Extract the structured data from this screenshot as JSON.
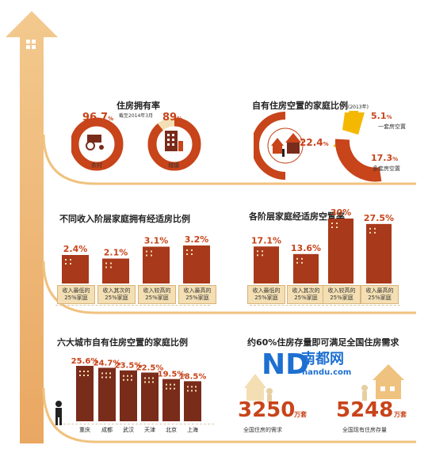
{
  "colors": {
    "accent": "#c8441a",
    "dark_bar": "#7a2c1a",
    "label_bg": "#f3dfb3",
    "arrow": "#f0c27f",
    "yellow": "#f5b800"
  },
  "home_ownership": {
    "title": "住房拥有率",
    "note": "截至2014年3月",
    "rural": {
      "value": "96.7",
      "pct": "%",
      "label": "农村"
    },
    "urban": {
      "value": "89",
      "pct": "%",
      "label": "城镇"
    }
  },
  "vacancy_share": {
    "title": "自有住房空置的家庭比例",
    "year": "(2013年)",
    "total": {
      "value": "22.4",
      "pct": "%"
    },
    "one": {
      "value": "5.1",
      "pct": "%",
      "label": "一套房空置"
    },
    "multi": {
      "value": "17.3",
      "pct": "%",
      "label": "多套房空置"
    }
  },
  "chart_data": [
    {
      "type": "bar",
      "title": "不同收入阶层家庭拥有经适房比例",
      "categories": [
        "收入最低的 25%家庭",
        "收入其次的 25%家庭",
        "收入较高的 25%家庭",
        "收入最高的 25%家庭"
      ],
      "values": [
        2.4,
        2.1,
        3.1,
        3.2
      ],
      "unit": "%"
    },
    {
      "type": "bar",
      "title": "各阶层家庭经适房空置率",
      "categories": [
        "收入最低的 25%家庭",
        "收入其次的 25%家庭",
        "收入较高的 25%家庭",
        "收入最高的 25%家庭"
      ],
      "values": [
        17.1,
        13.6,
        30,
        27.5
      ],
      "unit": "%"
    },
    {
      "type": "bar",
      "title": "六大城市自有住房空置的家庭比例",
      "categories": [
        "重庆",
        "成都",
        "武汉",
        "天津",
        "北京",
        "上海"
      ],
      "values": [
        25.6,
        24.7,
        23.5,
        22.5,
        19.5,
        18.5
      ],
      "unit": "%"
    }
  ],
  "chart1_labels": [
    [
      "收入最低的",
      "25%家庭"
    ],
    [
      "收入其次的",
      "25%家庭"
    ],
    [
      "收入较高的",
      "25%家庭"
    ],
    [
      "收入最高的",
      "25%家庭"
    ]
  ],
  "chart2_labels": [
    [
      "收入最低的",
      "25%家庭"
    ],
    [
      "收入其次的",
      "25%家庭"
    ],
    [
      "收入较高的",
      "25%家庭"
    ],
    [
      "收入最高的",
      "25%家庭"
    ]
  ],
  "stock": {
    "title": "约60%住房存量即可满足全国住房需求",
    "demand": {
      "value": "3250",
      "unit": "万套",
      "label": "全国住房的需求"
    },
    "supply": {
      "value": "5248",
      "unit": "万套",
      "label": "全国现有住房存量"
    }
  },
  "logo": {
    "name": "南都网",
    "url": "nandu.com"
  }
}
